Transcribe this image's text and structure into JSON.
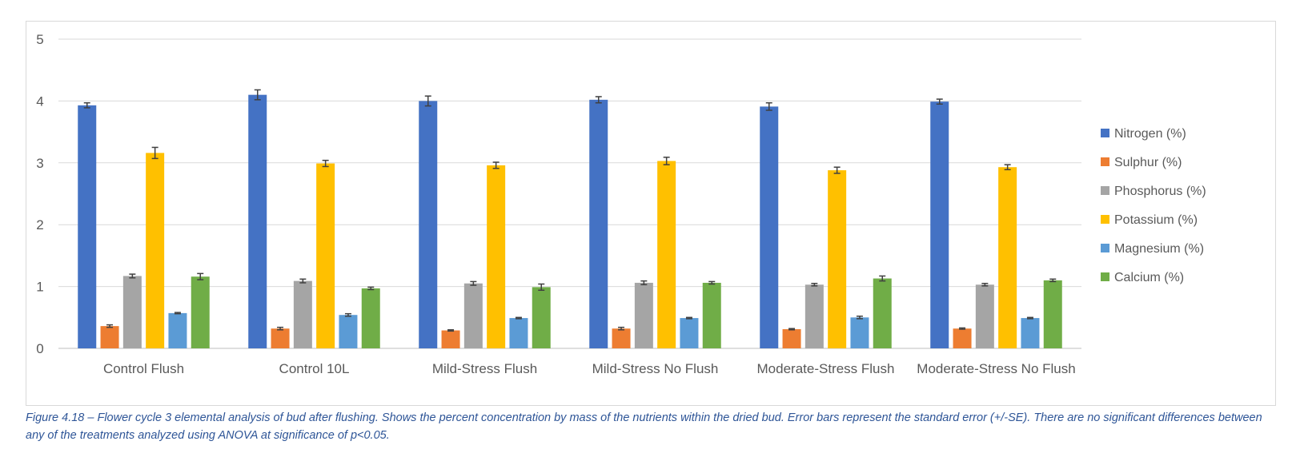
{
  "chart_data": {
    "type": "bar",
    "title": "",
    "xlabel": "",
    "ylabel": "",
    "ylim": [
      0,
      5
    ],
    "yticks": [
      0,
      1,
      2,
      3,
      4,
      5
    ],
    "grid": true,
    "legend_position": "right",
    "categories": [
      "Control Flush",
      "Control 10L",
      "Mild-Stress Flush",
      "Mild-Stress No Flush",
      "Moderate-Stress Flush",
      "Moderate-Stress No Flush"
    ],
    "series": [
      {
        "name": "Nitrogen (%)",
        "color": "#4472c4",
        "values": [
          3.93,
          4.1,
          4.0,
          4.02,
          3.91,
          3.99
        ],
        "errors": [
          0.04,
          0.08,
          0.08,
          0.05,
          0.06,
          0.04
        ]
      },
      {
        "name": "Sulphur (%)",
        "color": "#ed7d31",
        "values": [
          0.36,
          0.32,
          0.29,
          0.32,
          0.31,
          0.32
        ],
        "errors": [
          0.02,
          0.02,
          0.01,
          0.02,
          0.01,
          0.01
        ]
      },
      {
        "name": "Phosphorus (%)",
        "color": "#a5a5a5",
        "values": [
          1.17,
          1.09,
          1.05,
          1.06,
          1.03,
          1.03
        ],
        "errors": [
          0.03,
          0.03,
          0.03,
          0.03,
          0.02,
          0.02
        ]
      },
      {
        "name": "Potassium (%)",
        "color": "#ffc000",
        "values": [
          3.16,
          2.99,
          2.96,
          3.03,
          2.88,
          2.93
        ],
        "errors": [
          0.09,
          0.05,
          0.05,
          0.06,
          0.05,
          0.04
        ]
      },
      {
        "name": "Magnesium (%)",
        "color": "#5b9bd5",
        "values": [
          0.57,
          0.54,
          0.49,
          0.49,
          0.5,
          0.49
        ],
        "errors": [
          0.01,
          0.02,
          0.01,
          0.01,
          0.02,
          0.01
        ]
      },
      {
        "name": "Calcium (%)",
        "color": "#70ad47",
        "values": [
          1.16,
          0.97,
          0.99,
          1.06,
          1.13,
          1.1
        ],
        "errors": [
          0.05,
          0.02,
          0.05,
          0.02,
          0.04,
          0.02
        ]
      }
    ]
  },
  "caption": "Figure 4.18 – Flower cycle 3 elemental analysis of bud after flushing. Shows the percent concentration by mass of the nutrients within the dried bud. Error bars represent the standard error (+/-SE). There are no significant differences between any of the treatments analyzed using ANOVA at significance of p<0.05."
}
